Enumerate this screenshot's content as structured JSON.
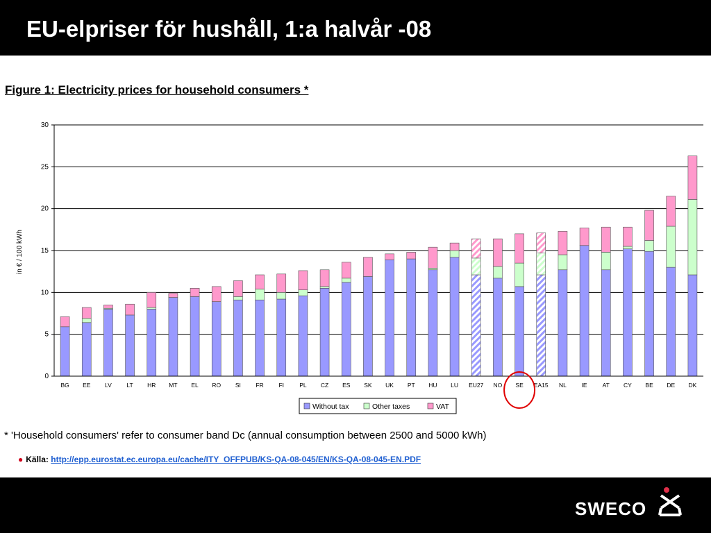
{
  "slide": {
    "title": "EU-elpriser för hushåll, 1:a halvår -08",
    "figure_title": "Figure 1: Electricity prices for household consumers *",
    "footnote": "* 'Household consumers' refer to consumer band Dc (annual consumption between 2500 and 5000 kWh)",
    "source_label": "Källa:",
    "source_link": "http://epp.eurostat.ec.europa.eu/cache/ITY_OFFPUB/KS-QA-08-045/EN/KS-QA-08-045-EN.PDF",
    "logo_text": "SWECO"
  },
  "colors": {
    "without_tax": "#9999ff",
    "other_taxes": "#ccffcc",
    "vat": "#ff99cc",
    "highlight_circle": "#e00000",
    "logo_accent": "#e0304a"
  },
  "chart_data": {
    "type": "bar",
    "stacked": true,
    "title": "",
    "xlabel": "",
    "ylabel": "in € / 100 kWh",
    "ylim": [
      0,
      30
    ],
    "yticks": [
      "0",
      "5",
      "10",
      "15",
      "20",
      "25",
      "30"
    ],
    "grid": true,
    "legend_position": "bottom-center",
    "categories": [
      "BG",
      "EE",
      "LV",
      "LT",
      "HR",
      "MT",
      "EL",
      "RO",
      "SI",
      "FR",
      "FI",
      "PL",
      "CZ",
      "ES",
      "SK",
      "UK",
      "PT",
      "HU",
      "LU",
      "EU27",
      "NO",
      "SE",
      "EA15",
      "NL",
      "IE",
      "AT",
      "CY",
      "BE",
      "DE",
      "DK"
    ],
    "category_labels": [
      "BG",
      "EE",
      "LV",
      "LT",
      "HR",
      "MT",
      "EL",
      "RO",
      "SI",
      "FR",
      "FI",
      "PL",
      "CZ",
      "ES",
      "SK",
      "UK",
      "PT",
      "HU",
      "LU",
      "EU27",
      "NO",
      "SE",
      "EA15",
      "NL",
      "IE",
      "AT",
      "CY",
      "BE",
      "DE",
      "DK"
    ],
    "hatched_categories": [
      "EU27",
      "EA15"
    ],
    "highlighted_category": "SE",
    "series": [
      {
        "name": "Without tax",
        "values": [
          5.9,
          6.4,
          8.0,
          7.3,
          8.0,
          9.4,
          9.5,
          8.9,
          9.1,
          9.1,
          9.2,
          9.6,
          10.5,
          11.2,
          11.9,
          13.9,
          14.0,
          12.7,
          14.2,
          12.1,
          11.7,
          10.7,
          12.1,
          12.7,
          15.6,
          12.7,
          15.2,
          14.9,
          13.0,
          12.1
        ]
      },
      {
        "name": "Other taxes",
        "values": [
          0.0,
          0.5,
          0.1,
          0.0,
          0.2,
          0.0,
          0.0,
          0.0,
          0.4,
          1.3,
          0.8,
          0.7,
          0.2,
          0.5,
          0.0,
          0.0,
          0.0,
          0.2,
          0.8,
          2.0,
          1.4,
          2.8,
          2.6,
          1.8,
          0.0,
          2.1,
          0.3,
          1.3,
          4.9,
          9.0
        ]
      },
      {
        "name": "VAT",
        "values": [
          1.2,
          1.3,
          0.4,
          1.3,
          1.8,
          0.5,
          1.0,
          1.8,
          1.9,
          1.7,
          2.2,
          2.3,
          2.0,
          1.9,
          2.3,
          0.7,
          0.8,
          2.5,
          0.9,
          2.3,
          3.3,
          3.5,
          2.4,
          2.8,
          2.1,
          3.0,
          2.3,
          3.6,
          3.6,
          5.2
        ]
      }
    ]
  }
}
